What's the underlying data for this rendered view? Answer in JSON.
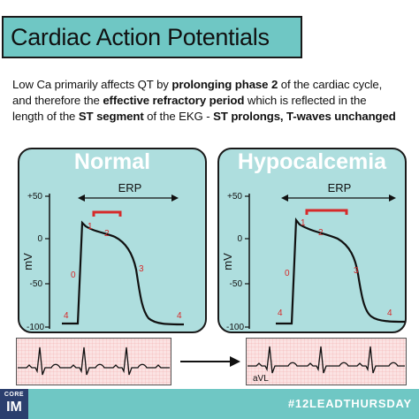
{
  "header": {
    "title": "Cardiac Action Potentials"
  },
  "description": {
    "line1_pre": "Low Ca primarily affects QT by ",
    "line1_bold": "prolonging phase 2",
    "line1_post": " of the cardiac cycle,",
    "line2_pre": "and therefore the ",
    "line2_bold": "effective refractory period",
    "line2_post": " which is reflected in the",
    "line3_pre": "length of the ",
    "line3_bold1": "ST segment",
    "line3_mid": " of the EKG - ",
    "line3_bold2": "ST prolongs, T-waves unchanged"
  },
  "panels": {
    "normal": {
      "title": "Normal"
    },
    "hypo": {
      "title": "Hypocalcemia"
    }
  },
  "axis": {
    "ylabel": "mV",
    "ticks": [
      "+50",
      "0",
      "-50",
      "-100"
    ],
    "erp_label": "ERP"
  },
  "phases": [
    "0",
    "1",
    "2",
    "3",
    "4"
  ],
  "ekg": {
    "lead_label": "aVL"
  },
  "footer": {
    "logo_top": "CORE",
    "logo_bottom": "IM",
    "hashtag": "#12LEADTHURSDAY"
  },
  "colors": {
    "teal": "#6fc7c4",
    "panel": "#aedede",
    "phase_red": "#d62a2a",
    "navy": "#2b3f6e"
  }
}
